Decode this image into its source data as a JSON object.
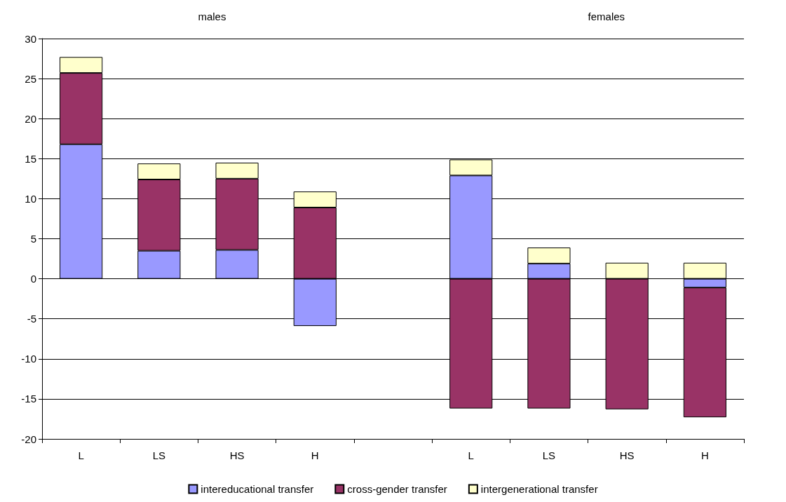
{
  "chart_data": {
    "type": "bar",
    "stacked": true,
    "categories": [
      "L",
      "LS",
      "HS",
      "H",
      null,
      "L",
      "LS",
      "HS",
      "H"
    ],
    "series": [
      {
        "name": "intereducational transfer",
        "color": "#9999ff",
        "values": [
          16.8,
          3.5,
          3.6,
          -5.9,
          null,
          12.9,
          1.9,
          null,
          -1.1
        ]
      },
      {
        "name": "cross-gender transfer",
        "color": "#993366",
        "values": [
          8.9,
          8.9,
          8.9,
          8.9,
          null,
          -16.2,
          -16.2,
          -16.3,
          -16.2
        ]
      },
      {
        "name": "intergenerational transfer",
        "color": "#ffffcc",
        "values": [
          2,
          2,
          2,
          2,
          null,
          2,
          2,
          2,
          2
        ]
      }
    ],
    "annotations": [
      "males",
      "females"
    ],
    "ylim": [
      -20,
      30
    ],
    "yticks": [
      -20,
      -15,
      -10,
      -5,
      0,
      5,
      10,
      15,
      20,
      25,
      30
    ],
    "grid": "y",
    "legend": "bottom"
  }
}
